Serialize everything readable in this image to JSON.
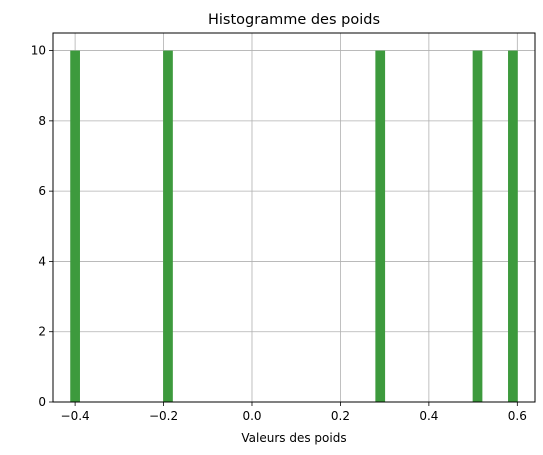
{
  "chart_data": {
    "type": "bar",
    "title": "Histogramme des poids",
    "xlabel": "Valeurs des poids",
    "ylabel": "",
    "xlim": [
      -0.45,
      0.64
    ],
    "ylim": [
      0,
      10.5
    ],
    "grid": true,
    "bin_width": 0.022,
    "bars": [
      {
        "x": -0.4,
        "value": 10
      },
      {
        "x": -0.19,
        "value": 10
      },
      {
        "x": 0.29,
        "value": 10
      },
      {
        "x": 0.51,
        "value": 10
      },
      {
        "x": 0.59,
        "value": 10
      }
    ],
    "xticks": [
      "-0.4",
      "-0.2",
      "0.0",
      "0.2",
      "0.4",
      "0.6"
    ],
    "yticks": [
      "0",
      "2",
      "4",
      "6",
      "8",
      "10"
    ],
    "colors": {
      "bar": "#3d9a3d",
      "grid": "#b0b0b0",
      "axis": "#000000"
    }
  }
}
